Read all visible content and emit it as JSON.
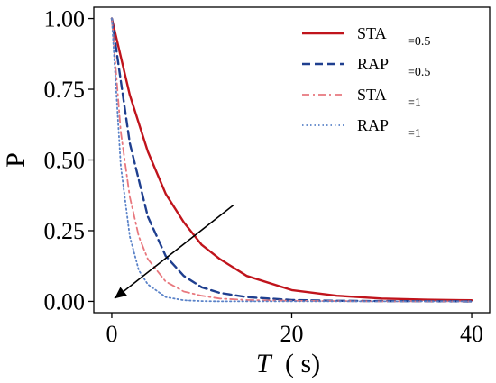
{
  "chart_data": {
    "type": "line",
    "xlabel_main": "T",
    "xlabel_unit": "(   s)",
    "ylabel": "P",
    "xlim": [
      -2,
      42
    ],
    "ylim": [
      -0.04,
      1.04
    ],
    "xticks": [
      0,
      20,
      40
    ],
    "xtick_labels": [
      "0",
      "20",
      "40"
    ],
    "yticks": [
      0.0,
      0.25,
      0.5,
      0.75,
      1.0
    ],
    "ytick_labels": [
      "0.00",
      "0.25",
      "0.50",
      "0.75",
      "1.00"
    ],
    "grid": false,
    "legend_position": "top-right",
    "series": [
      {
        "name": "STA",
        "name_suffix": "=0.5",
        "color": "#c0141c",
        "dash": "solid",
        "x": [
          0,
          2,
          4,
          6,
          8,
          10,
          12,
          15,
          20,
          25,
          30,
          35,
          40
        ],
        "y": [
          1.0,
          0.73,
          0.53,
          0.38,
          0.28,
          0.2,
          0.15,
          0.09,
          0.04,
          0.02,
          0.01,
          0.006,
          0.004
        ]
      },
      {
        "name": "RAP",
        "name_suffix": "=0.5",
        "color": "#1f3f8f",
        "dash": "dashed",
        "x": [
          0,
          2,
          4,
          6,
          8,
          10,
          12,
          15,
          20,
          25,
          30,
          40
        ],
        "y": [
          1.0,
          0.56,
          0.3,
          0.16,
          0.09,
          0.05,
          0.03,
          0.015,
          0.005,
          0.002,
          0.001,
          0.0
        ]
      },
      {
        "name": "STA",
        "name_suffix": "=1",
        "color": "#e8787e",
        "dash": "dashdot",
        "x": [
          0,
          1,
          2,
          3,
          4,
          6,
          8,
          10,
          12,
          15,
          20,
          30,
          40
        ],
        "y": [
          1.0,
          0.6,
          0.37,
          0.23,
          0.15,
          0.07,
          0.035,
          0.02,
          0.01,
          0.005,
          0.002,
          0.0,
          0.0
        ]
      },
      {
        "name": "RAP",
        "name_suffix": "=1",
        "color": "#5a82c8",
        "dash": "dotted",
        "x": [
          0,
          1,
          2,
          3,
          4,
          6,
          8,
          10,
          12,
          15,
          20,
          40
        ],
        "y": [
          1.0,
          0.48,
          0.23,
          0.11,
          0.06,
          0.015,
          0.004,
          0.001,
          0.0,
          0.0,
          0.0,
          0.0
        ]
      }
    ],
    "annotation": {
      "type": "arrow",
      "from": [
        13.5,
        0.34
      ],
      "to": [
        0.3,
        0.01
      ],
      "color": "#000000"
    }
  }
}
